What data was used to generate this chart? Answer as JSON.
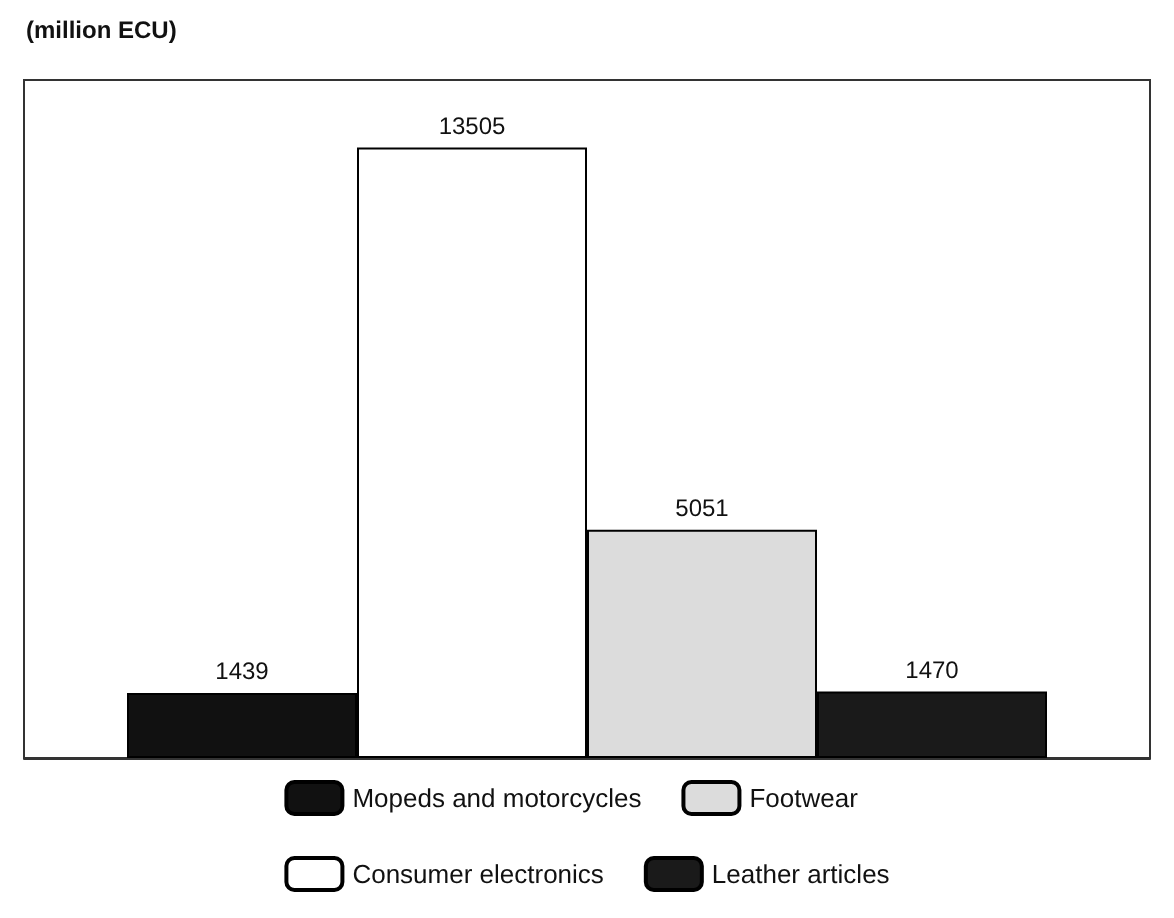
{
  "chart_data": {
    "type": "bar",
    "ylabel": "(million ECU)",
    "categories": [
      null
    ],
    "series": [
      {
        "name": "Mopeds and motorcycles",
        "color": "#111111",
        "values": [
          1439
        ]
      },
      {
        "name": "Consumer electronics",
        "color": "#ffffff",
        "values": [
          13505
        ]
      },
      {
        "name": "Footwear",
        "color": "#dcdcdc",
        "values": [
          5051
        ]
      },
      {
        "name": "Leather articles",
        "color": "#1a1a1a",
        "values": [
          1470
        ]
      }
    ],
    "data_labels": true,
    "legend": "bottom"
  }
}
